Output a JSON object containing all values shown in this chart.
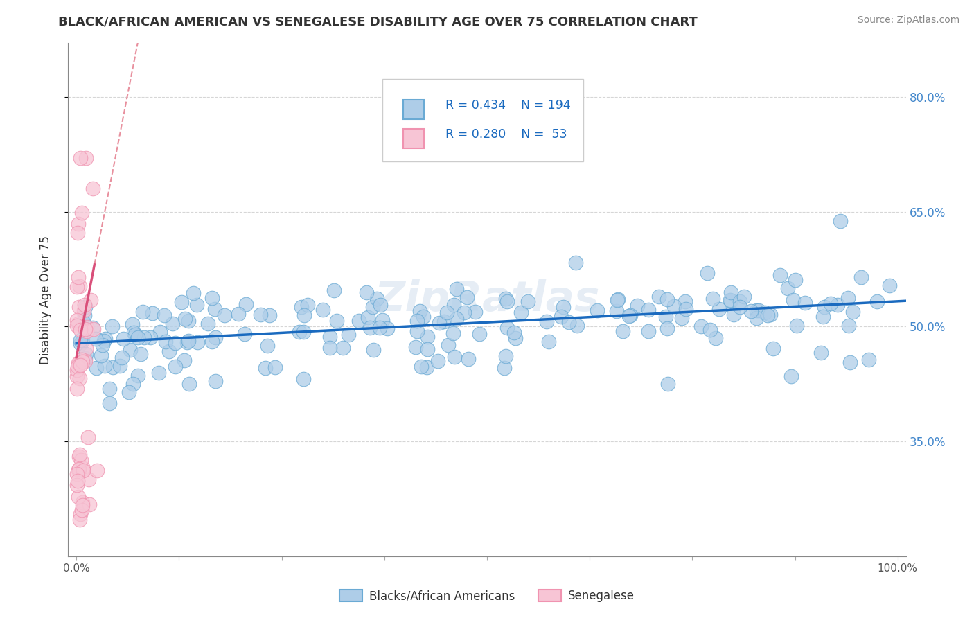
{
  "title": "BLACK/AFRICAN AMERICAN VS SENEGALESE DISABILITY AGE OVER 75 CORRELATION CHART",
  "source": "Source: ZipAtlas.com",
  "ylabel": "Disability Age Over 75",
  "xlabel": "",
  "xlim": [
    -0.01,
    1.01
  ],
  "ylim": [
    0.2,
    0.87
  ],
  "yticks": [
    0.35,
    0.5,
    0.65,
    0.8
  ],
  "ytick_labels": [
    "35.0%",
    "50.0%",
    "65.0%",
    "80.0%"
  ],
  "xticks": [
    0.0,
    0.125,
    0.25,
    0.375,
    0.5,
    0.625,
    0.75,
    0.875,
    1.0
  ],
  "xtick_labels_show": [
    "0.0%",
    "",
    "",
    "",
    "",
    "",
    "",
    "",
    "100.0%"
  ],
  "watermark": "ZipRatlas",
  "blue_R": 0.434,
  "blue_N": 194,
  "pink_R": 0.28,
  "pink_N": 53,
  "blue_marker_face": "#aecde8",
  "blue_marker_edge": "#6aaad4",
  "pink_marker_face": "#f7c5d5",
  "pink_marker_edge": "#f093b0",
  "blue_line_color": "#1a6abf",
  "pink_line_color": "#d94f7a",
  "pink_dash_color": "#e8909e",
  "legend_blue_label": "Blacks/African Americans",
  "legend_pink_label": "Senegalese",
  "blue_line_slope": 0.055,
  "blue_line_intercept": 0.478,
  "pink_line_slope": 5.5,
  "pink_line_intercept": 0.46,
  "background_color": "#ffffff",
  "grid_color": "#cccccc",
  "title_color": "#333333",
  "source_color": "#888888",
  "yaxis_color": "#4488cc"
}
